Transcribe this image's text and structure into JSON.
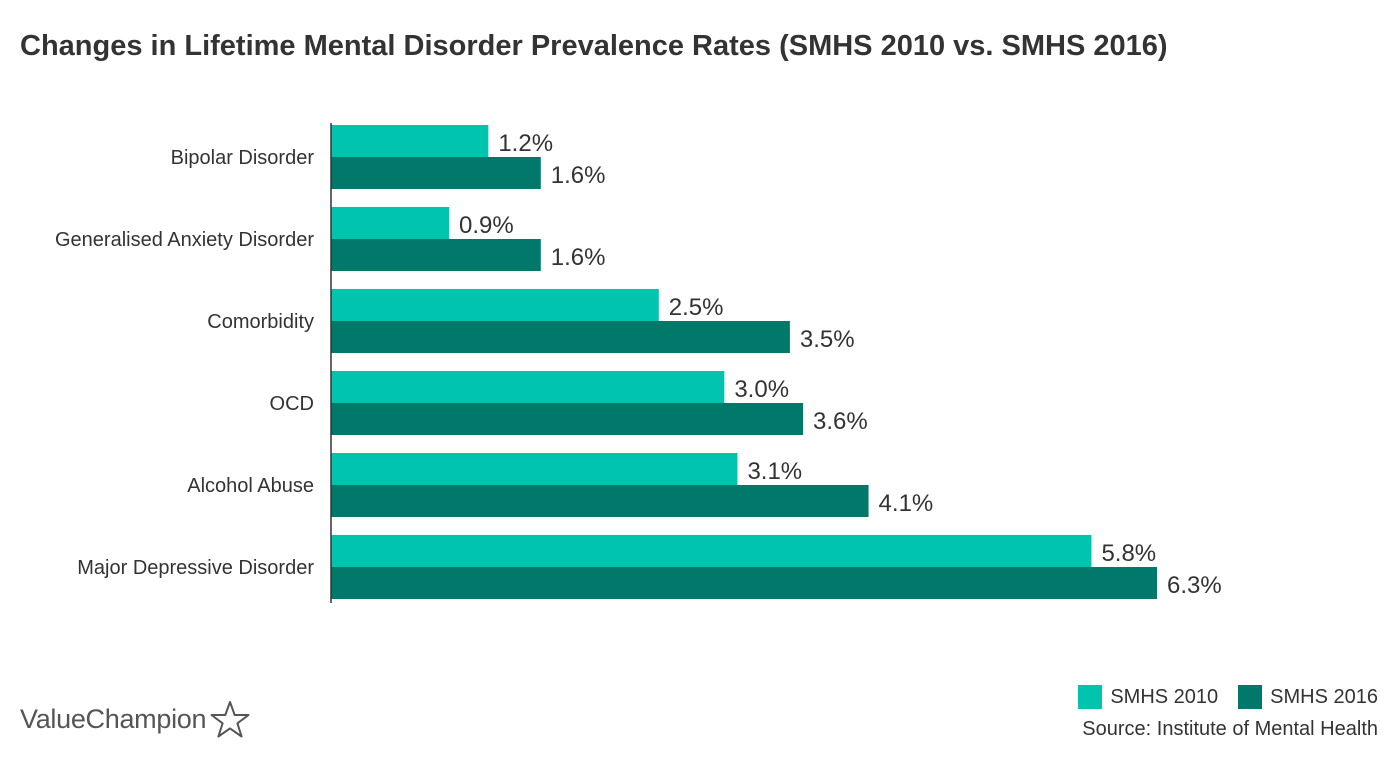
{
  "title": "Changes in Lifetime Mental Disorder Prevalence Rates (SMHS 2010 vs. SMHS 2016)",
  "colors": {
    "series_2010": "#00c4ad",
    "series_2016": "#00796a",
    "axis": "#333333",
    "text": "#333333"
  },
  "chart_data": {
    "type": "bar",
    "orientation": "horizontal",
    "title": "Changes in Lifetime Mental Disorder Prevalence Rates (SMHS 2010 vs. SMHS 2016)",
    "categories": [
      "Bipolar Disorder",
      "Generalised Anxiety Disorder",
      "Comorbidity",
      "OCD",
      "Alcohol Abuse",
      "Major Depressive Disorder"
    ],
    "series": [
      {
        "name": "SMHS 2010",
        "values": [
          1.2,
          0.9,
          2.5,
          3.0,
          3.1,
          5.8
        ],
        "labels": [
          "1.2%",
          "0.9%",
          "2.5%",
          "3.0%",
          "3.1%",
          "5.8%"
        ]
      },
      {
        "name": "SMHS 2016",
        "values": [
          1.6,
          1.6,
          3.5,
          3.6,
          4.1,
          6.3
        ],
        "labels": [
          "1.6%",
          "1.6%",
          "3.5%",
          "3.6%",
          "4.1%",
          "6.3%"
        ]
      }
    ],
    "xlabel": "",
    "ylabel": "",
    "xlim": [
      0,
      6.3
    ],
    "grid": false,
    "legend_position": "bottom-right"
  },
  "legend": {
    "items": [
      {
        "label": "SMHS 2010"
      },
      {
        "label": "SMHS 2016"
      }
    ]
  },
  "source": "Source: Institute of Mental Health",
  "logo": {
    "text": "ValueChampion",
    "icon": "star-outline-icon"
  }
}
